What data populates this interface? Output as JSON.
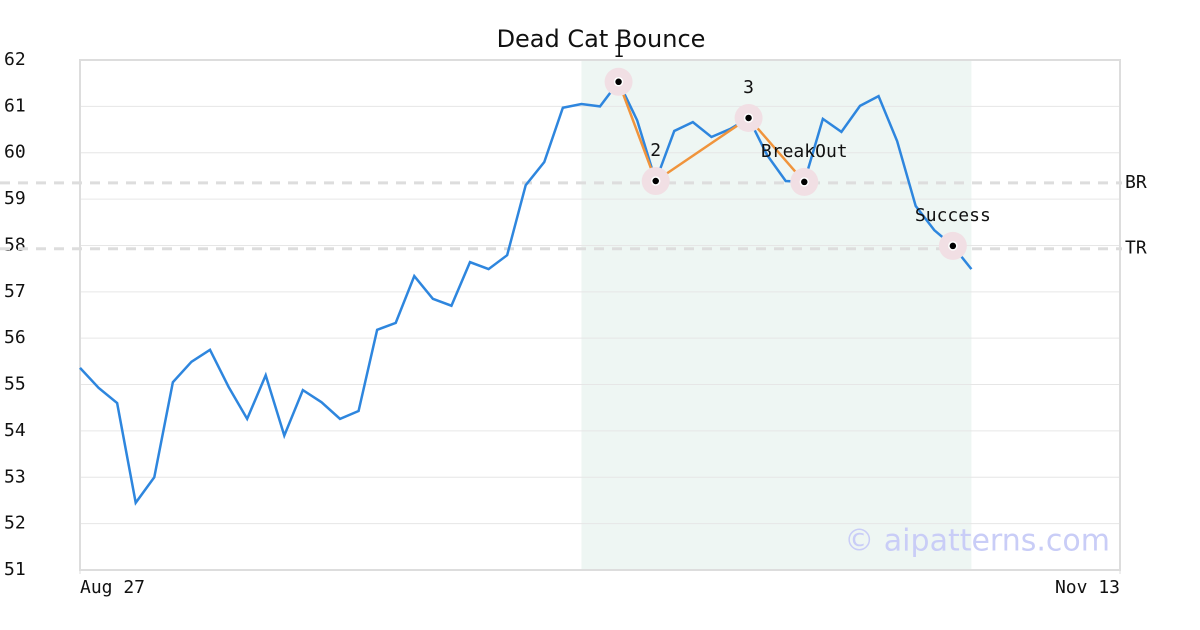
{
  "chart_data": {
    "type": "line",
    "title": "Dead Cat Bounce",
    "x": [
      0,
      1,
      2,
      3,
      4,
      5,
      6,
      7,
      8,
      9,
      10,
      11,
      12,
      13,
      14,
      15,
      16,
      17,
      18,
      19,
      20,
      21,
      22,
      23,
      24,
      25,
      26,
      27,
      28,
      29,
      30,
      31,
      32,
      33,
      34,
      35,
      36,
      37,
      38,
      39,
      40,
      41,
      42,
      43,
      44,
      45,
      46,
      47,
      48
    ],
    "series": [
      {
        "color": "#2e86de",
        "values": [
          55.36,
          54.93,
          54.6,
          52.45,
          53.0,
          55.05,
          55.49,
          55.75,
          54.95,
          54.26,
          55.2,
          53.9,
          54.88,
          54.62,
          54.26,
          54.43,
          56.18,
          56.33,
          57.34,
          56.85,
          56.7,
          57.64,
          57.49,
          57.79,
          59.3,
          59.8,
          60.97,
          61.05,
          61.0,
          61.53,
          60.7,
          59.39,
          60.47,
          60.66,
          60.34,
          60.51,
          60.75,
          59.95,
          59.39,
          59.37,
          60.73,
          60.45,
          61.01,
          61.22,
          60.25,
          58.85,
          58.33,
          57.99,
          57.49
        ]
      }
    ],
    "pattern": {
      "color": "#f0943c",
      "x": [
        29,
        31,
        36,
        39
      ],
      "values": [
        61.53,
        59.39,
        60.75,
        59.37
      ],
      "labels": [
        "1",
        "2",
        "3",
        "BreakOut"
      ]
    },
    "success": {
      "x": 47,
      "value": 57.99,
      "label": "Success"
    },
    "levels": [
      {
        "name": "BR",
        "value": 59.35
      },
      {
        "name": "TR",
        "value": 57.93
      }
    ],
    "highlight_range": [
      27,
      48
    ],
    "highlight_color": "#eef6f3",
    "xlim": [
      0,
      56
    ],
    "xticks": [
      {
        "value": 0,
        "label": "Aug 27"
      },
      {
        "value": 56,
        "label": "Nov 13"
      }
    ],
    "ylim": [
      51,
      62
    ],
    "yticks": [
      51,
      52,
      53,
      54,
      55,
      56,
      57,
      58,
      59,
      60,
      61,
      62
    ],
    "grid": true,
    "watermark": "© aipatterns.com"
  }
}
